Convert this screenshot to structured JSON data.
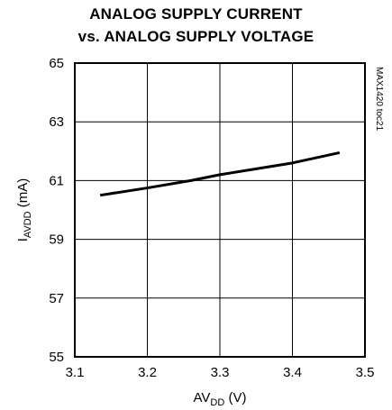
{
  "chart_data": {
    "type": "line",
    "title_line1": "ANALOG SUPPLY CURRENT",
    "title_line2": "vs. ANALOG SUPPLY VOLTAGE",
    "xlabel": {
      "main": "AV",
      "sub": "DD",
      "unit": " (V)"
    },
    "ylabel": {
      "main": "I",
      "sub": "AVDD",
      "unit": " (mA)"
    },
    "xlim": [
      3.1,
      3.5
    ],
    "ylim": [
      55,
      65
    ],
    "xticks": [
      3.1,
      3.2,
      3.3,
      3.4,
      3.5
    ],
    "xtick_labels": [
      "3.1",
      "3.2",
      "3.3",
      "3.4",
      "3.5"
    ],
    "yticks": [
      55,
      57,
      59,
      61,
      63,
      65
    ],
    "ytick_labels": [
      "55",
      "57",
      "59",
      "61",
      "63",
      "65"
    ],
    "grid": true,
    "watermark": "MAX1420 toc21",
    "series": [
      {
        "x": [
          3.135,
          3.2,
          3.26,
          3.3,
          3.35,
          3.4,
          3.465
        ],
        "y": [
          60.5,
          60.75,
          61.0,
          61.2,
          61.4,
          61.6,
          61.95
        ],
        "color": "#000000"
      }
    ]
  }
}
